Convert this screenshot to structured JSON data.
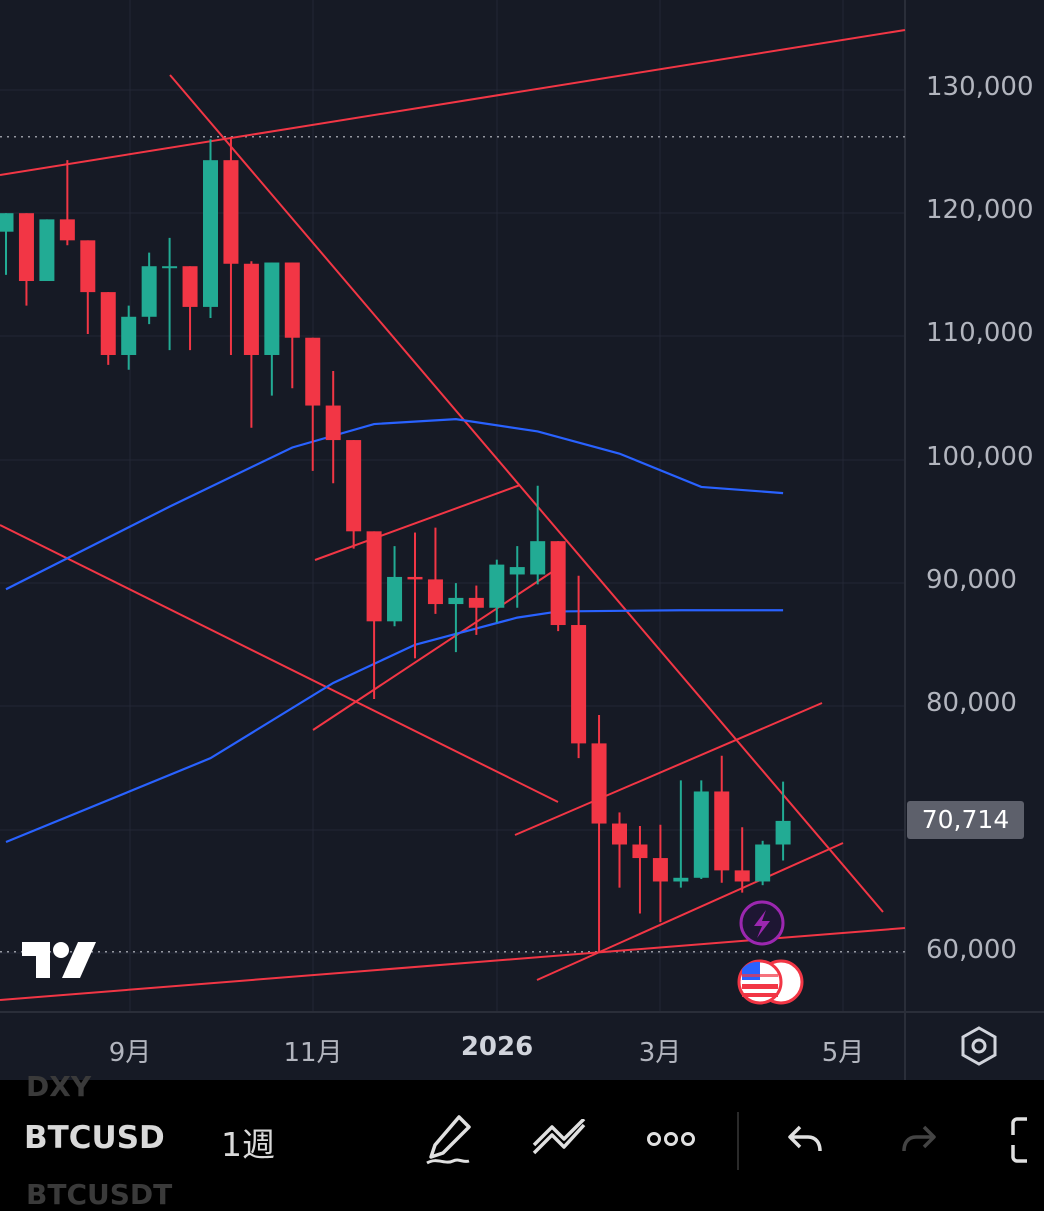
{
  "toolbar": {
    "ghost_top": "DXY",
    "symbol": "BTCUSD",
    "interval": "1週",
    "ghost_bottom": "BTCUSDT",
    "icons": [
      "pencil-icon",
      "line-tool-icon",
      "more-icon",
      "undo-icon",
      "redo-icon",
      "fullscreen-icon"
    ]
  },
  "price_axis": {
    "labels": [
      "130,000",
      "120,000",
      "110,000",
      "100,000",
      "90,000",
      "80,000",
      "60,000"
    ],
    "last_price": "70,714"
  },
  "time_axis": {
    "labels": [
      "9月",
      "11月",
      "2026",
      "3月",
      "5月"
    ]
  },
  "colors": {
    "background": "#161a25",
    "up": "#22ab94",
    "down": "#f23645",
    "trendline": "#f23645",
    "ma": "#2962ff"
  },
  "chart_data": {
    "type": "candlestick",
    "symbol": "BTCUSD",
    "interval": "1週",
    "ylim": [
      56000,
      135000
    ],
    "candles": [
      {
        "o": 118500,
        "h": 120000,
        "l": 115000,
        "c": 120000
      },
      {
        "o": 120000,
        "h": 120000,
        "l": 112500,
        "c": 114500
      },
      {
        "o": 114500,
        "h": 119500,
        "l": 114500,
        "c": 119500
      },
      {
        "o": 119500,
        "h": 124300,
        "l": 117400,
        "c": 117800
      },
      {
        "o": 117800,
        "h": 117800,
        "l": 110200,
        "c": 113600
      },
      {
        "o": 113600,
        "h": 113600,
        "l": 107700,
        "c": 108500
      },
      {
        "o": 108500,
        "h": 112500,
        "l": 107300,
        "c": 111600
      },
      {
        "o": 111600,
        "h": 116800,
        "l": 111000,
        "c": 115700
      },
      {
        "o": 115700,
        "h": 118000,
        "l": 108900,
        "c": 115700
      },
      {
        "o": 115700,
        "h": 115700,
        "l": 108900,
        "c": 112400
      },
      {
        "o": 112400,
        "h": 126000,
        "l": 111500,
        "c": 124300
      },
      {
        "o": 124300,
        "h": 126200,
        "l": 108500,
        "c": 115900
      },
      {
        "o": 115900,
        "h": 116100,
        "l": 102600,
        "c": 108500
      },
      {
        "o": 108500,
        "h": 116000,
        "l": 105200,
        "c": 116000
      },
      {
        "o": 116000,
        "h": 116000,
        "l": 105800,
        "c": 109900
      },
      {
        "o": 109900,
        "h": 109900,
        "l": 99100,
        "c": 104400
      },
      {
        "o": 104400,
        "h": 107200,
        "l": 98100,
        "c": 101600
      },
      {
        "o": 101600,
        "h": 101600,
        "l": 92800,
        "c": 94200
      },
      {
        "o": 94200,
        "h": 94200,
        "l": 80600,
        "c": 86900
      },
      {
        "o": 86900,
        "h": 93000,
        "l": 86500,
        "c": 90500
      },
      {
        "o": 90500,
        "h": 94100,
        "l": 83900,
        "c": 90300
      },
      {
        "o": 90300,
        "h": 94500,
        "l": 87500,
        "c": 88300
      },
      {
        "o": 88300,
        "h": 90000,
        "l": 84400,
        "c": 88800
      },
      {
        "o": 88800,
        "h": 89800,
        "l": 85800,
        "c": 88000
      },
      {
        "o": 88000,
        "h": 91900,
        "l": 86800,
        "c": 91500
      },
      {
        "o": 90700,
        "h": 93000,
        "l": 88000,
        "c": 91300
      },
      {
        "o": 90700,
        "h": 97900,
        "l": 89900,
        "c": 93400
      },
      {
        "o": 93400,
        "h": 93400,
        "l": 86100,
        "c": 86600
      },
      {
        "o": 86600,
        "h": 90600,
        "l": 75800,
        "c": 77000
      },
      {
        "o": 77000,
        "h": 79300,
        "l": 60100,
        "c": 70500
      },
      {
        "o": 70500,
        "h": 71400,
        "l": 65300,
        "c": 68800
      },
      {
        "o": 68800,
        "h": 70300,
        "l": 63200,
        "c": 67700
      },
      {
        "o": 67700,
        "h": 70400,
        "l": 62500,
        "c": 65800
      },
      {
        "o": 65800,
        "h": 74000,
        "l": 65300,
        "c": 66100
      },
      {
        "o": 66100,
        "h": 74000,
        "l": 66000,
        "c": 73100
      },
      {
        "o": 73100,
        "h": 76000,
        "l": 65700,
        "c": 66700
      },
      {
        "o": 66700,
        "h": 70200,
        "l": 64900,
        "c": 65800
      },
      {
        "o": 65800,
        "h": 69100,
        "l": 65500,
        "c": 68800
      },
      {
        "o": 68800,
        "h": 73900,
        "l": 67500,
        "c": 70714
      }
    ],
    "moving_averages": [
      {
        "name": "",
        "points": [
          [
            0,
            89500
          ],
          [
            8,
            96200
          ],
          [
            14,
            101000
          ],
          [
            18,
            102900
          ],
          [
            22,
            103300
          ],
          [
            26,
            102300
          ],
          [
            30,
            100500
          ],
          [
            34,
            97800
          ],
          [
            38,
            97300
          ]
        ]
      },
      {
        "name": "",
        "points": [
          [
            0,
            69000
          ],
          [
            10,
            75800
          ],
          [
            16,
            81900
          ],
          [
            20,
            85000
          ],
          [
            25,
            87200
          ],
          [
            27,
            87700
          ],
          [
            33,
            87800
          ],
          [
            38,
            87800
          ]
        ]
      }
    ],
    "reference_levels": [
      126200,
      60100
    ]
  }
}
